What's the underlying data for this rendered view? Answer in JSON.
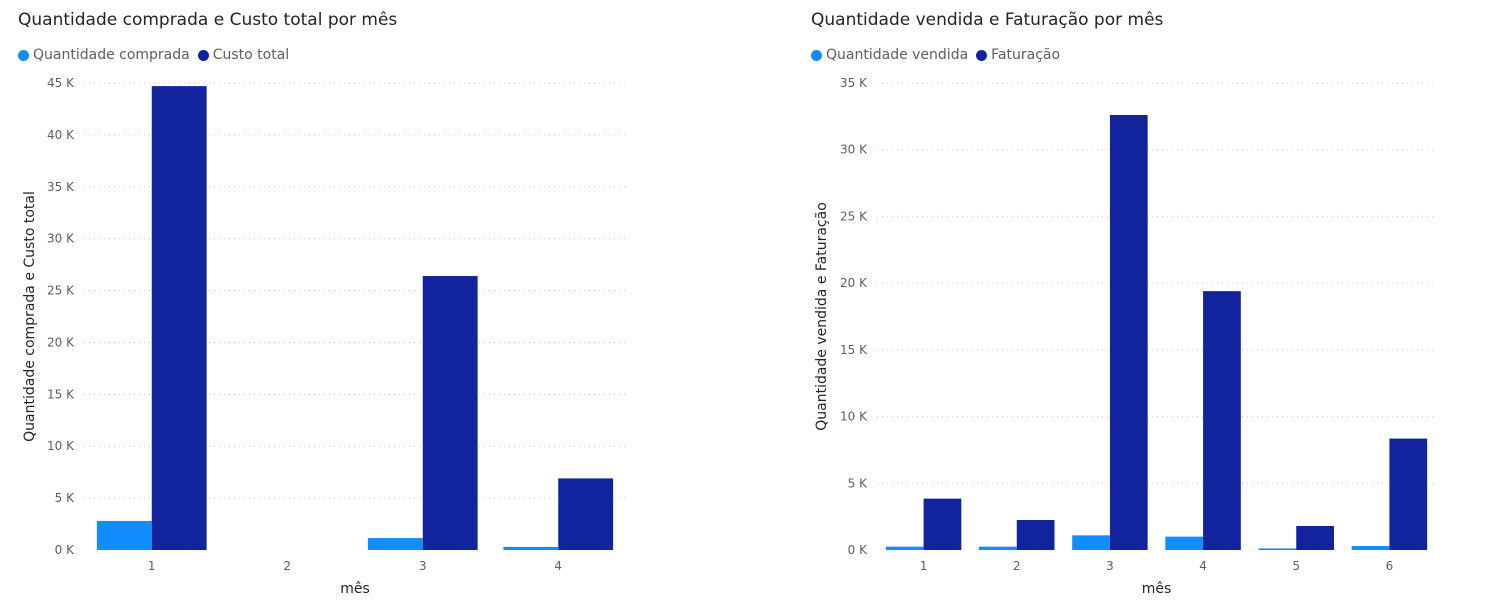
{
  "chart_data": [
    {
      "type": "bar",
      "title": "Quantidade comprada e Custo total por mês",
      "xlabel": "mês",
      "ylabel": "Quantidade comprada e Custo total",
      "categories": [
        "1",
        "2",
        "3",
        "4"
      ],
      "series": [
        {
          "name": "Quantidade comprada",
          "color": "#118dff",
          "values": [
            2800,
            0,
            1150,
            300
          ]
        },
        {
          "name": "Custo total",
          "color": "#12239e",
          "values": [
            44700,
            0,
            26400,
            6900
          ]
        }
      ],
      "ylim": [
        0,
        45000
      ],
      "yticks": [
        0,
        5000,
        10000,
        15000,
        20000,
        25000,
        30000,
        35000,
        40000,
        45000
      ],
      "ytick_labels": [
        "0 K",
        "5 K",
        "10 K",
        "15 K",
        "20 K",
        "25 K",
        "30 K",
        "35 K",
        "40 K",
        "45 K"
      ],
      "grid": true,
      "legend_position": "top-left"
    },
    {
      "type": "bar",
      "title": "Quantidade vendida e Faturação por mês",
      "xlabel": "mês",
      "ylabel": "Quantidade vendida e Faturação",
      "categories": [
        "1",
        "2",
        "3",
        "4",
        "5",
        "6"
      ],
      "series": [
        {
          "name": "Quantidade vendida",
          "color": "#118dff",
          "values": [
            250,
            250,
            1100,
            1000,
            120,
            300
          ]
        },
        {
          "name": "Faturação",
          "color": "#12239e",
          "values": [
            3850,
            2250,
            32600,
            19400,
            1800,
            8350
          ]
        }
      ],
      "ylim": [
        0,
        35000
      ],
      "yticks": [
        0,
        5000,
        10000,
        15000,
        20000,
        25000,
        30000,
        35000
      ],
      "ytick_labels": [
        "0 K",
        "5 K",
        "10 K",
        "15 K",
        "20 K",
        "25 K",
        "30 K",
        "35 K"
      ],
      "grid": true,
      "legend_position": "top-left"
    }
  ]
}
